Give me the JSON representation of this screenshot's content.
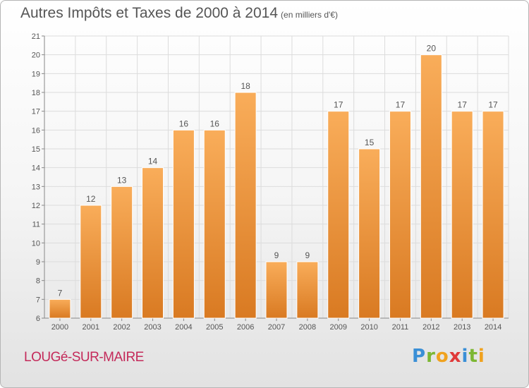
{
  "header": {
    "title": "Autres Impôts et Taxes de 2000 à 2014",
    "unit": "(en milliers d'€)"
  },
  "footer": {
    "commune": "LOUGé-SUR-MAIRE",
    "logo_letters": [
      {
        "char": "P",
        "color": "#3a8fd6"
      },
      {
        "char": "r",
        "color": "#7cb733"
      },
      {
        "char": "o",
        "color": "#f0a21e"
      },
      {
        "char": "x",
        "color": "#e03a3a"
      },
      {
        "char": "i",
        "color": "#3a8fd6"
      },
      {
        "char": "t",
        "color": "#7cb733"
      },
      {
        "char": "i",
        "color": "#f0a21e"
      }
    ]
  },
  "chart_data": {
    "type": "bar",
    "title": "Autres Impôts et Taxes de 2000 à 2014",
    "subtitle": "(en milliers d'€)",
    "categories": [
      "2000",
      "2001",
      "2002",
      "2003",
      "2004",
      "2005",
      "2006",
      "2007",
      "2008",
      "2009",
      "2010",
      "2011",
      "2012",
      "2013",
      "2014"
    ],
    "values": [
      7,
      12,
      13,
      14,
      16,
      16,
      18,
      9,
      9,
      17,
      15,
      17,
      20,
      17,
      17
    ],
    "ylim": [
      6,
      21
    ],
    "yticks": [
      6,
      7,
      8,
      9,
      10,
      11,
      12,
      13,
      14,
      15,
      16,
      17,
      18,
      19,
      20,
      21
    ],
    "grid": true,
    "bar_color": "#f5a24b",
    "bar_color_dark": "#e0802a"
  }
}
